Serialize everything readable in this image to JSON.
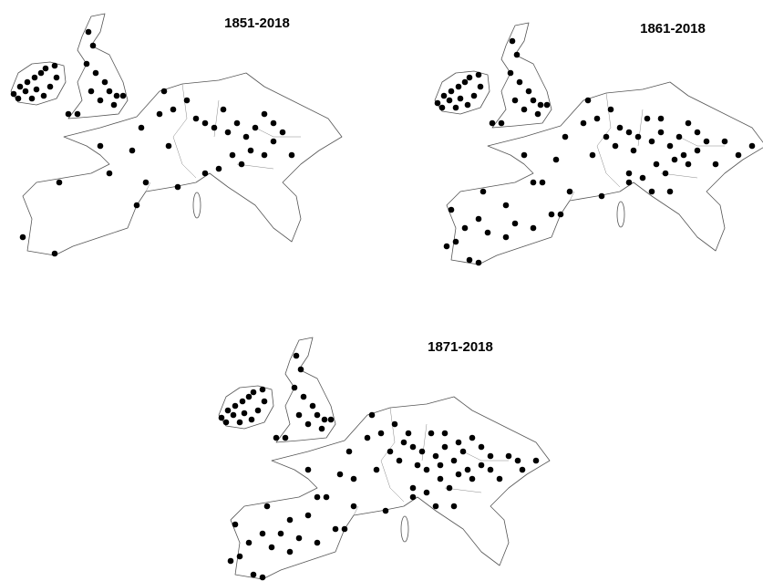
{
  "maps": [
    {
      "title": "1851-2018"
    },
    {
      "title": "1861-2018"
    },
    {
      "title": "1871-2018"
    }
  ]
}
